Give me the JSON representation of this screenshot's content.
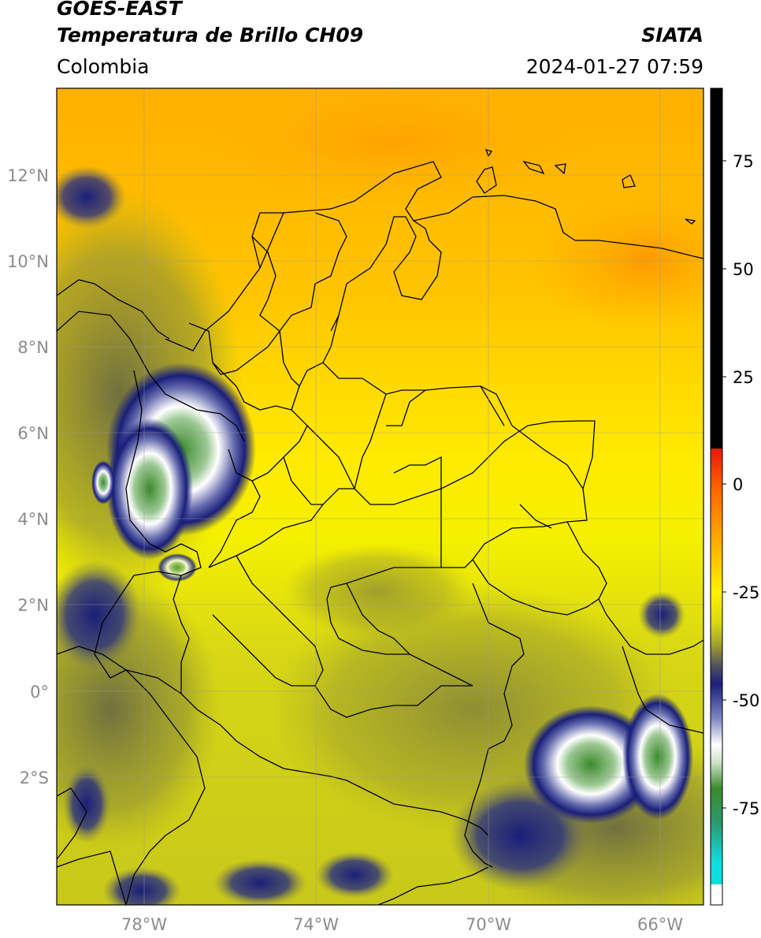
{
  "header": {
    "satellite": "GOES-EAST",
    "product": "Temperatura de Brillo CH09",
    "region": "Colombia",
    "source": "SIATA",
    "datetime": "2024-01-27 07:59"
  },
  "axes": {
    "lon_ticks": [
      "78°W",
      "74°W",
      "70°W",
      "66°W"
    ],
    "lat_ticks": [
      "12°N",
      "10°N",
      "8°N",
      "6°N",
      "4°N",
      "2°N",
      "0°",
      "2°S"
    ],
    "lon_range": [
      -80,
      -65
    ],
    "lat_range": [
      -5,
      14
    ]
  },
  "colorbar": {
    "ticks": [
      "75",
      "50",
      "25",
      "0",
      "-25",
      "-50",
      "-75"
    ],
    "tick_values": [
      75,
      50,
      25,
      0,
      -25,
      -50,
      -75
    ],
    "range": [
      -93,
      89
    ],
    "colors": {
      "hot": "#000000",
      "red": "#e8180c",
      "orange": "#ff9a00",
      "yellow": "#fff200",
      "olive": "#bfbf20",
      "navy": "#1a1f7a",
      "white": "#ffffff",
      "green": "#3d8a2e",
      "cyan": "#10dede"
    }
  }
}
